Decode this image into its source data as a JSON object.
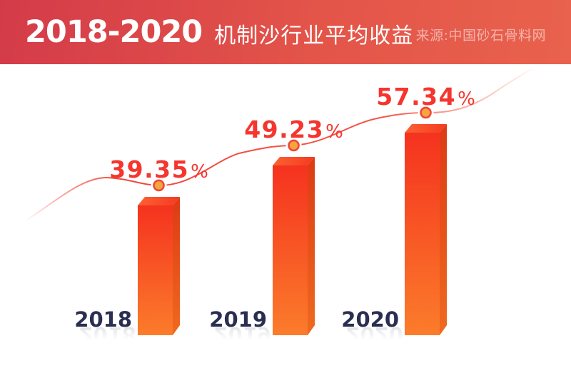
{
  "header": {
    "title_years": "2018-2020",
    "title_text": "机制沙行业平均收益",
    "source": "来源:中国砂石骨料网"
  },
  "chart_data": {
    "type": "bar",
    "title": "2018-2020 机制沙行业平均收益",
    "source": "来源:中国砂石骨料网",
    "categories": [
      "2018",
      "2019",
      "2020"
    ],
    "values": [
      39.35,
      49.23,
      57.34
    ],
    "value_labels": [
      "39.35",
      "49.23",
      "57.34"
    ],
    "percent_sign": "%",
    "unit": "%",
    "layout": {
      "bar_style": "3d",
      "trend_line": true,
      "markers": "circle",
      "gridlines": false,
      "legend": "none",
      "background": "#ffffff"
    },
    "colors": {
      "banner_gradient_left": "#d43b49",
      "banner_gradient_right": "#e9624d",
      "bar_front_top": "#f5321f",
      "bar_front_bottom": "#fb7c2b",
      "bar_side_top": "#dd3a14",
      "bar_side_bottom": "#ef6a1f",
      "bar_top_face": "#fa5c32",
      "trend_line": "#f2463a",
      "marker_fill": "#f5a53e",
      "marker_ring": "#f04637",
      "value_label": "#f5352e",
      "year_label": "#2a2f52"
    }
  }
}
